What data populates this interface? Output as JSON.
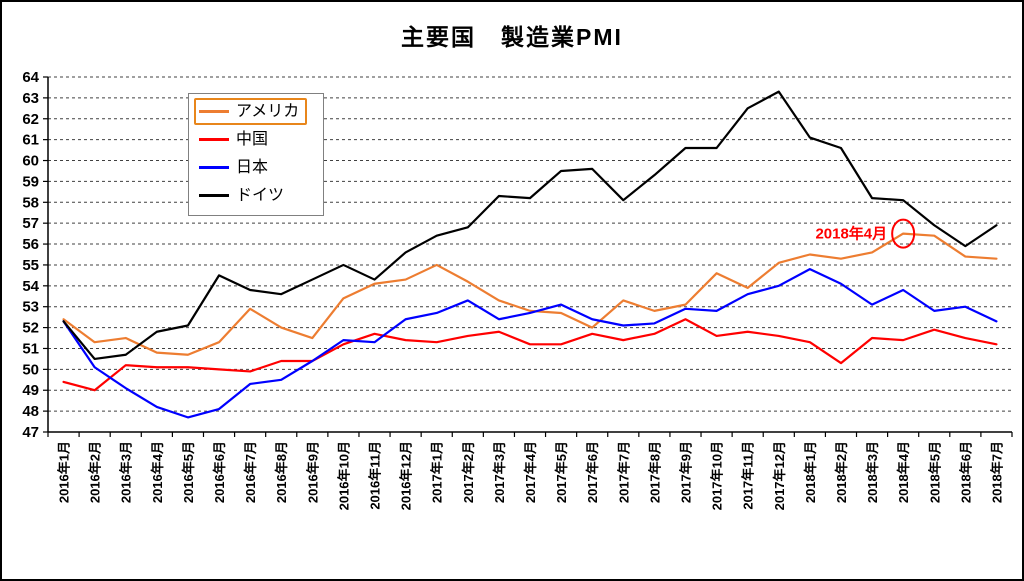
{
  "chart_data": {
    "type": "line",
    "title": "主要国　製造業PMI",
    "categories": [
      "2016年1月",
      "2016年2月",
      "2016年3月",
      "2016年4月",
      "2016年5月",
      "2016年6月",
      "2016年7月",
      "2016年8月",
      "2016年9月",
      "2016年10月",
      "2016年11月",
      "2016年12月",
      "2017年1月",
      "2017年2月",
      "2017年3月",
      "2017年4月",
      "2017年5月",
      "2017年6月",
      "2017年7月",
      "2017年8月",
      "2017年9月",
      "2017年10月",
      "2017年11月",
      "2017年12月",
      "2018年1月",
      "2018年2月",
      "2018年3月",
      "2018年4月",
      "2018年5月",
      "2018年6月",
      "2018年7月"
    ],
    "series": [
      {
        "key": "america",
        "name": "アメリカ",
        "color": "#ED7D31",
        "values": [
          52.4,
          51.3,
          51.5,
          50.8,
          50.7,
          51.3,
          52.9,
          52.0,
          51.5,
          53.4,
          54.1,
          54.3,
          55.0,
          54.2,
          53.3,
          52.8,
          52.7,
          52.0,
          53.3,
          52.8,
          53.1,
          54.6,
          53.9,
          55.1,
          55.5,
          55.3,
          55.6,
          56.5,
          56.4,
          55.4,
          55.3
        ]
      },
      {
        "key": "china",
        "name": "中国",
        "color": "#FF0000",
        "values": [
          49.4,
          49.0,
          50.2,
          50.1,
          50.1,
          50.0,
          49.9,
          50.4,
          50.4,
          51.2,
          51.7,
          51.4,
          51.3,
          51.6,
          51.8,
          51.2,
          51.2,
          51.7,
          51.4,
          51.7,
          52.4,
          51.6,
          51.8,
          51.6,
          51.3,
          50.3,
          51.5,
          51.4,
          51.9,
          51.5,
          51.2
        ]
      },
      {
        "key": "japan",
        "name": "日本",
        "color": "#0000FF",
        "values": [
          52.3,
          50.1,
          49.1,
          48.2,
          47.7,
          48.1,
          49.3,
          49.5,
          50.4,
          51.4,
          51.3,
          52.4,
          52.7,
          53.3,
          52.4,
          52.7,
          53.1,
          52.4,
          52.1,
          52.2,
          52.9,
          52.8,
          53.6,
          54.0,
          54.8,
          54.1,
          53.1,
          53.8,
          52.8,
          53.0,
          52.3
        ]
      },
      {
        "key": "germany",
        "name": "ドイツ",
        "color": "#000000",
        "values": [
          52.3,
          50.5,
          50.7,
          51.8,
          52.1,
          54.5,
          53.8,
          53.6,
          54.3,
          55.0,
          54.3,
          55.6,
          56.4,
          56.8,
          58.3,
          58.2,
          59.5,
          59.6,
          58.1,
          59.3,
          60.6,
          60.6,
          62.5,
          63.3,
          61.1,
          60.6,
          58.2,
          58.1,
          56.9,
          55.9,
          56.9
        ]
      }
    ],
    "ylim": [
      47,
      64
    ],
    "ytick_step": 1,
    "grid": "dashed-horizontal",
    "legend_position": "top-left-inside",
    "legend_highlight": "アメリカ",
    "annotation": {
      "text": "2018年4月",
      "color": "#FF0000",
      "series": "アメリカ",
      "category": "2018年4月",
      "value": 56.5
    }
  }
}
